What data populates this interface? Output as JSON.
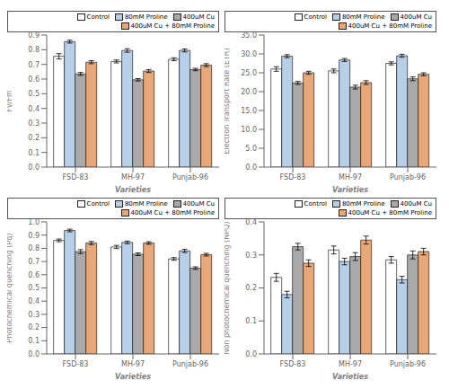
{
  "chart_data": [
    {
      "type": "bar",
      "categories": [
        "FSD-83",
        "MH-97",
        "Punjab-96"
      ],
      "xlabel": "Varieties",
      "ylabel": "Fv/Fm",
      "ylim": [
        0.0,
        0.9
      ],
      "yticks": [
        {
          "value": 0.0,
          "label": "0.0"
        },
        0.1,
        0.2,
        0.3,
        0.4,
        0.5,
        0.6,
        0.7,
        0.8,
        0.9
      ],
      "grid": false,
      "legend": "upper right",
      "series": [
        {
          "name": "Control",
          "color": "#ffffff",
          "values": [
            0.755,
            0.72,
            0.735
          ],
          "errors": [
            0.018,
            0.01,
            0.01
          ]
        },
        {
          "name": "80mM Proline",
          "color": "#b8cfe8",
          "values": [
            0.855,
            0.795,
            0.795
          ],
          "errors": [
            0.01,
            0.012,
            0.01
          ]
        },
        {
          "name": "400uM Cu",
          "color": "#aaaaaa",
          "values": [
            0.635,
            0.595,
            0.665
          ],
          "errors": [
            0.01,
            0.008,
            0.008
          ]
        },
        {
          "name": "400uM Cu + 80mM Proline",
          "color": "#e8a878",
          "values": [
            0.715,
            0.655,
            0.695
          ],
          "errors": [
            0.01,
            0.01,
            0.01
          ]
        }
      ]
    },
    {
      "type": "bar",
      "categories": [
        "FSD-83",
        "MH-97",
        "Punjab-96"
      ],
      "xlabel": "Varieties",
      "ylabel": "Electron Transport Rate (ETR)",
      "ylim": [
        0.0,
        35.0
      ],
      "yticks": [
        {
          "value": 0.0,
          "label": "0.0"
        },
        {
          "value": 5.0,
          "label": "5.0"
        },
        {
          "value": 10.0,
          "label": "10.0"
        },
        {
          "value": 15.0,
          "label": "15.0"
        },
        {
          "value": 20.0,
          "label": "20.0"
        },
        {
          "value": 25.0,
          "label": "25.0"
        },
        {
          "value": 30.0,
          "label": "30.0"
        },
        {
          "value": 35.0,
          "label": "35.0"
        }
      ],
      "grid": false,
      "legend": "upper right",
      "series": [
        {
          "name": "Control",
          "color": "#ffffff",
          "values": [
            26.0,
            25.5,
            27.5
          ],
          "errors": [
            0.6,
            0.5,
            0.4
          ]
        },
        {
          "name": "80mM Proline",
          "color": "#b8cfe8",
          "values": [
            29.4,
            28.4,
            29.5
          ],
          "errors": [
            0.4,
            0.4,
            0.4
          ]
        },
        {
          "name": "400uM Cu",
          "color": "#aaaaaa",
          "values": [
            22.3,
            21.2,
            23.4
          ],
          "errors": [
            0.4,
            0.5,
            0.5
          ]
        },
        {
          "name": "400uM Cu + 80mM Proline",
          "color": "#e8a878",
          "values": [
            25.0,
            22.4,
            24.6
          ],
          "errors": [
            0.4,
            0.5,
            0.4
          ]
        }
      ]
    },
    {
      "type": "bar",
      "categories": [
        "FSD-83",
        "MH-97",
        "Punjab-96"
      ],
      "xlabel": "Varieties",
      "ylabel": "Photochemical quenching (Pq)",
      "ylim": [
        0.0,
        1.0
      ],
      "yticks": [
        {
          "value": 0.0,
          "label": "0.0"
        },
        0.1,
        0.2,
        0.3,
        0.4,
        0.5,
        0.6,
        0.7,
        0.8,
        0.9,
        {
          "value": 1.0,
          "label": "1.0"
        }
      ],
      "grid": false,
      "legend": "upper right",
      "series": [
        {
          "name": "Control",
          "color": "#ffffff",
          "values": [
            0.86,
            0.81,
            0.72
          ],
          "errors": [
            0.01,
            0.012,
            0.01
          ]
        },
        {
          "name": "80mM Proline",
          "color": "#b8cfe8",
          "values": [
            0.935,
            0.845,
            0.78
          ],
          "errors": [
            0.01,
            0.01,
            0.012
          ]
        },
        {
          "name": "400uM Cu",
          "color": "#aaaaaa",
          "values": [
            0.775,
            0.755,
            0.65
          ],
          "errors": [
            0.015,
            0.01,
            0.01
          ]
        },
        {
          "name": "400uM Cu + 80mM Proline",
          "color": "#e8a878",
          "values": [
            0.84,
            0.84,
            0.752
          ],
          "errors": [
            0.012,
            0.01,
            0.01
          ]
        }
      ]
    },
    {
      "type": "bar",
      "categories": [
        "FSD-83",
        "MH-97",
        "Punjab-96"
      ],
      "xlabel": "Varieties",
      "ylabel": "Non photochemical quenching (NPQ)",
      "ylim": [
        0.0,
        0.4
      ],
      "yticks": [
        {
          "value": 0.0,
          "label": "0.0"
        },
        0.1,
        0.2,
        0.3,
        0.4
      ],
      "grid": false,
      "legend": "upper right",
      "series": [
        {
          "name": "Control",
          "color": "#ffffff",
          "values": [
            0.232,
            0.315,
            0.285
          ],
          "errors": [
            0.012,
            0.012,
            0.01
          ]
        },
        {
          "name": "80mM Proline",
          "color": "#b8cfe8",
          "values": [
            0.18,
            0.28,
            0.225
          ],
          "errors": [
            0.01,
            0.01,
            0.01
          ]
        },
        {
          "name": "400uM Cu",
          "color": "#aaaaaa",
          "values": [
            0.325,
            0.295,
            0.3
          ],
          "errors": [
            0.01,
            0.012,
            0.012
          ]
        },
        {
          "name": "400uM Cu + 80mM Proline",
          "color": "#e8a878",
          "values": [
            0.275,
            0.345,
            0.31
          ],
          "errors": [
            0.01,
            0.012,
            0.01
          ]
        }
      ]
    }
  ]
}
